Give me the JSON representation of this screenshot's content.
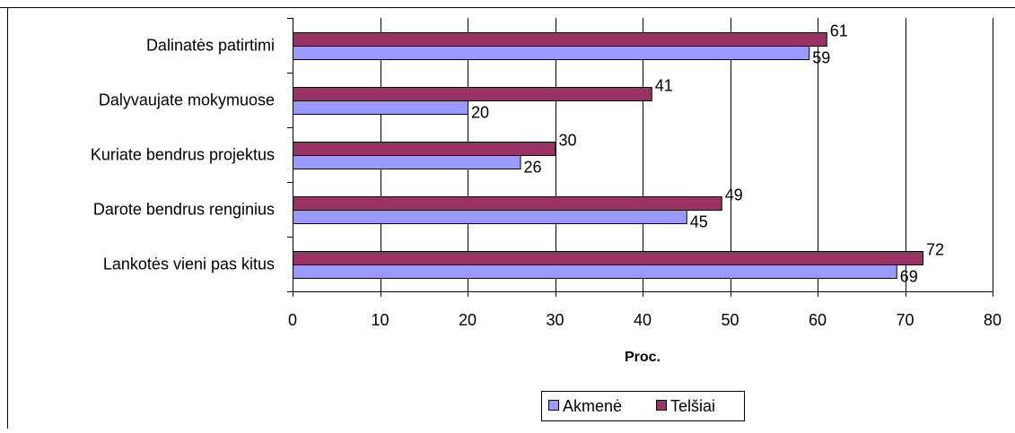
{
  "chart_data": {
    "type": "bar",
    "orientation": "horizontal",
    "categories": [
      "Dalinatės patirtimi",
      "Dalyvaujate mokymuose",
      "Kuriate bendrus projektus",
      "Darote bendrus renginius",
      "Lankotės vieni pas kitus"
    ],
    "series": [
      {
        "name": "Akmenė",
        "color": "#9999ff",
        "values": [
          59,
          20,
          26,
          45,
          69
        ]
      },
      {
        "name": "Telšiai",
        "color": "#993366",
        "values": [
          61,
          41,
          30,
          49,
          72
        ]
      }
    ],
    "x_ticks": [
      "0",
      "10",
      "20",
      "30",
      "40",
      "50",
      "60",
      "70",
      "80"
    ],
    "xlabel": "Proc.",
    "xlim": [
      0,
      80
    ],
    "grid": true,
    "legend_position": "bottom"
  }
}
